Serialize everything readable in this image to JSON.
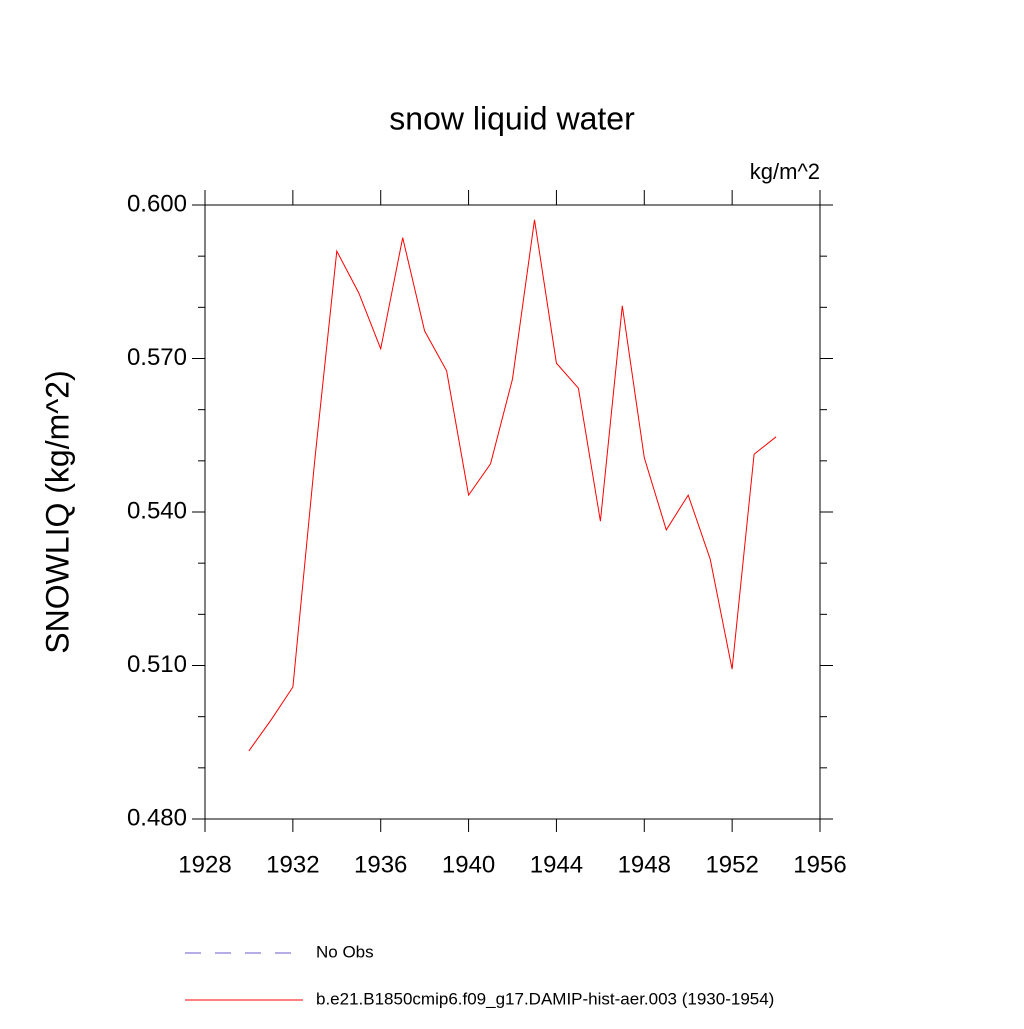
{
  "chart_data": {
    "type": "line",
    "title": "snow liquid water",
    "units": "kg/m^2",
    "y_label": "SNOWLIQ  (kg/m^2)",
    "x": [
      1930,
      1931,
      1932,
      1933,
      1934,
      1935,
      1936,
      1937,
      1938,
      1939,
      1940,
      1941,
      1942,
      1943,
      1944,
      1945,
      1946,
      1947,
      1948,
      1949,
      1950,
      1951,
      1952,
      1953,
      1954
    ],
    "series": [
      {
        "name": "No Obs",
        "color": "#6a5acd",
        "dashed": true,
        "values": [
          null,
          null,
          null,
          null,
          null,
          null,
          null,
          null,
          null,
          null,
          null,
          null,
          null,
          null,
          null,
          null,
          null,
          null,
          null,
          null,
          null,
          null,
          null,
          null,
          null
        ]
      },
      {
        "name": "b.e21.B1850cmip6.f09_g17.DAMIP-hist-aer.003 (1930-1954)",
        "color": "#ff0000",
        "dashed": false,
        "values": [
          0.4933,
          0.4993,
          0.5058,
          0.5502,
          0.591,
          0.5828,
          0.5719,
          0.5936,
          0.5754,
          0.5676,
          0.5433,
          0.5494,
          0.566,
          0.5971,
          0.5691,
          0.5642,
          0.5382,
          0.5803,
          0.5506,
          0.5365,
          0.5433,
          0.5308,
          0.5093,
          0.5513,
          0.5547
        ]
      }
    ],
    "xlim": [
      1928,
      1956
    ],
    "xticks": [
      1928,
      1932,
      1936,
      1940,
      1944,
      1948,
      1952,
      1956
    ],
    "ylim": [
      0.48,
      0.6
    ],
    "yticks": [
      {
        "value": 0.48,
        "label": "0.480"
      },
      {
        "value": 0.51,
        "label": "0.510"
      },
      {
        "value": 0.54,
        "label": "0.540"
      },
      {
        "value": 0.57,
        "label": "0.570"
      },
      {
        "value": 0.6,
        "label": "0.600"
      }
    ],
    "yminorticks": [
      0.49,
      0.5,
      0.52,
      0.53,
      0.55,
      0.56,
      0.58,
      0.59
    ]
  }
}
